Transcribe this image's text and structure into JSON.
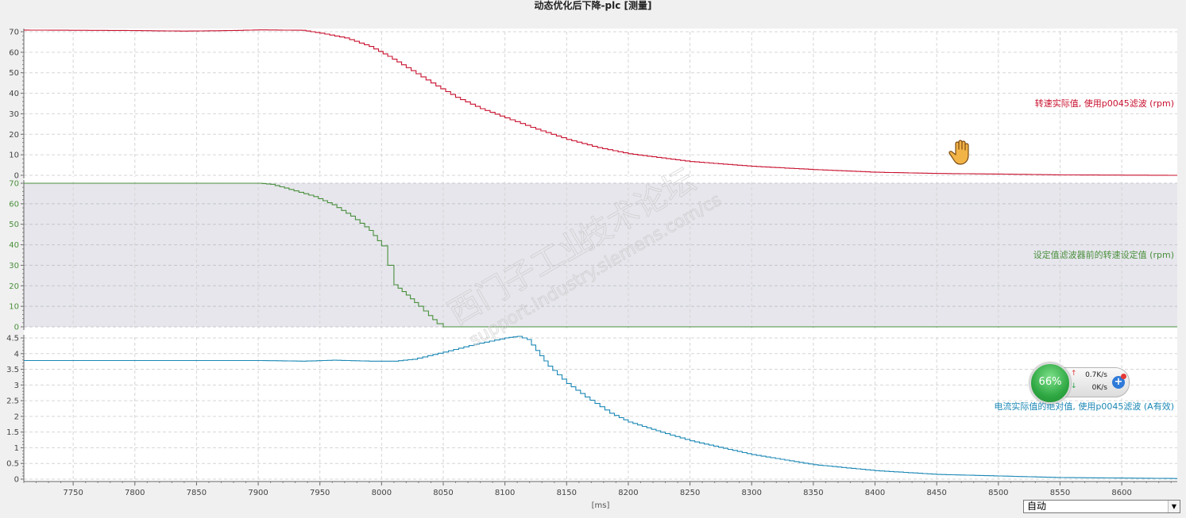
{
  "title": "动态优化后下降-plc [测量]",
  "x_axis_unit": "[ms]",
  "zoom_select": {
    "value": "自动"
  },
  "watermark": {
    "line1": "西门子工业",
    "line2": "技术论坛",
    "line3": "support.industry.siemens.com/cs"
  },
  "network_widget": {
    "percent": "66%",
    "upload": "0.7K/s",
    "download": "0K/s"
  },
  "colors": {
    "speed": "#c8102e",
    "setpoint": "#4a8f3c",
    "current": "#1a87b5",
    "grid": "#d6d6d6",
    "shade": "#e6e6ec"
  },
  "cursor_icon": "hand-cursor-icon",
  "chart_data": [
    {
      "type": "line",
      "label": "转速实际值, 使用p0045滤波 (rpm)",
      "xlim": [
        7710,
        8645
      ],
      "ylim": [
        0,
        70
      ],
      "yticks": [
        0,
        10,
        20,
        30,
        40,
        50,
        60,
        70
      ],
      "step": true,
      "points": [
        [
          7710,
          70.8
        ],
        [
          7790,
          70.6
        ],
        [
          7840,
          70.3
        ],
        [
          7880,
          70.6
        ],
        [
          7900,
          70.9
        ],
        [
          7935,
          70.7
        ],
        [
          7950,
          69.3
        ],
        [
          7970,
          67
        ],
        [
          7990,
          62.8
        ],
        [
          8005,
          58
        ],
        [
          8020,
          52.5
        ],
        [
          8040,
          45
        ],
        [
          8060,
          38
        ],
        [
          8080,
          32.5
        ],
        [
          8100,
          28
        ],
        [
          8125,
          22.5
        ],
        [
          8150,
          17.5
        ],
        [
          8175,
          13.5
        ],
        [
          8200,
          10.5
        ],
        [
          8250,
          6.7
        ],
        [
          8300,
          4.4
        ],
        [
          8350,
          2.8
        ],
        [
          8400,
          1.5
        ],
        [
          8450,
          0.9
        ],
        [
          8500,
          0.6
        ],
        [
          8550,
          0.2
        ],
        [
          8645,
          0
        ]
      ]
    },
    {
      "type": "line",
      "label": "设定值滤波器前的转速设定值 (rpm)",
      "xlim": [
        7710,
        8645
      ],
      "ylim": [
        0,
        70
      ],
      "yticks": [
        0,
        10,
        20,
        30,
        40,
        50,
        60,
        70
      ],
      "step": true,
      "shaded": true,
      "points": [
        [
          7710,
          70
        ],
        [
          7900,
          70
        ],
        [
          7910,
          69.5
        ],
        [
          7925,
          67
        ],
        [
          7945,
          63.5
        ],
        [
          7960,
          59.5
        ],
        [
          7975,
          54
        ],
        [
          7990,
          47
        ],
        [
          8000,
          39.5
        ],
        [
          8005,
          30
        ],
        [
          8010,
          20.5
        ],
        [
          8020,
          15.5
        ],
        [
          8030,
          10
        ],
        [
          8038,
          5.5
        ],
        [
          8045,
          1.5
        ],
        [
          8050,
          0
        ],
        [
          8645,
          0
        ]
      ]
    },
    {
      "type": "line",
      "label": "电流实际值的绝对值, 使用p0045滤波 (A有效)",
      "xlim": [
        7710,
        8645
      ],
      "ylim": [
        0,
        4.5
      ],
      "yticks": [
        0,
        0.5,
        1,
        1.5,
        2,
        2.5,
        3,
        3.5,
        4,
        4.5
      ],
      "xticks": [
        7750,
        7800,
        7850,
        7900,
        7950,
        8000,
        8050,
        8100,
        8150,
        8200,
        8250,
        8300,
        8350,
        8400,
        8450,
        8500,
        8550,
        8600
      ],
      "step": true,
      "points": [
        [
          7710,
          3.78
        ],
        [
          7900,
          3.78
        ],
        [
          7935,
          3.76
        ],
        [
          7960,
          3.79
        ],
        [
          7990,
          3.76
        ],
        [
          8010,
          3.76
        ],
        [
          8025,
          3.82
        ],
        [
          8050,
          4.05
        ],
        [
          8075,
          4.3
        ],
        [
          8100,
          4.5
        ],
        [
          8110,
          4.55
        ],
        [
          8118,
          4.45
        ],
        [
          8125,
          4.1
        ],
        [
          8135,
          3.6
        ],
        [
          8150,
          3.05
        ],
        [
          8165,
          2.62
        ],
        [
          8185,
          2.1
        ],
        [
          8200,
          1.82
        ],
        [
          8230,
          1.45
        ],
        [
          8250,
          1.22
        ],
        [
          8300,
          0.78
        ],
        [
          8350,
          0.46
        ],
        [
          8400,
          0.27
        ],
        [
          8450,
          0.15
        ],
        [
          8500,
          0.1
        ],
        [
          8550,
          0.05
        ],
        [
          8645,
          0.02
        ]
      ]
    }
  ]
}
